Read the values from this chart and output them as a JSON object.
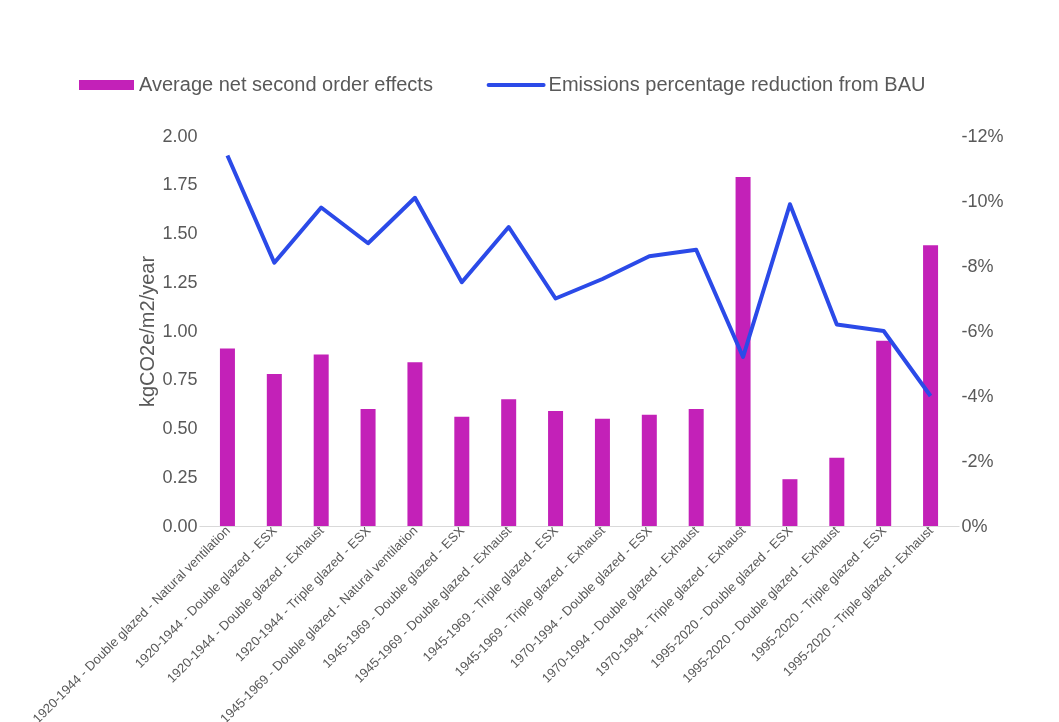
{
  "chart_data": {
    "type": "bar",
    "categories": [
      "1920-1944 - Double glazed - Natural ventilation",
      "1920-1944 - Double glazed - ESX",
      "1920-1944 - Double glazed - Exhaust",
      "1920-1944 - Triple glazed - ESX",
      "1945-1969 - Double glazed - Natural ventilation",
      "1945-1969 - Double glazed - ESX",
      "1945-1969 - Double glazed - Exhaust",
      "1945-1969 - Triple glazed - ESX",
      "1945-1969 - Triple glazed - Exhaust",
      "1970-1994 - Double glazed - ESX",
      "1970-1994 - Double glazed - Exhaust",
      "1970-1994 - Triple glazed - Exhaust",
      "1995-2020 - Double glazed - ESX",
      "1995-2020 - Double glazed - Exhaust",
      "1995-2020 - Triple glazed - ESX",
      "1995-2020 - Triple glazed - Exhaust"
    ],
    "series": [
      {
        "name": "Average net second order effects",
        "color": "#c321b8",
        "values": [
          0.91,
          0.78,
          0.88,
          0.6,
          0.84,
          0.56,
          0.65,
          0.59,
          0.55,
          0.57,
          0.6,
          1.79,
          0.24,
          0.35,
          0.95,
          1.44
        ]
      },
      {
        "name": "Emissions percentage reduction from BAU",
        "type": "line",
        "axis": "y2",
        "color": "#2b4ae8",
        "values": [
          -11.4,
          -8.1,
          -9.8,
          -8.7,
          -10.1,
          -7.5,
          -9.2,
          -7.0,
          -7.6,
          -8.3,
          -8.5,
          -5.2,
          -9.9,
          -6.2,
          -6.0,
          -4.0
        ]
      }
    ],
    "ylabel": "kgCO2e/m2/year",
    "ylim": [
      0,
      2
    ],
    "yticks": [
      {
        "value": 0,
        "label": "0.00"
      },
      {
        "value": 0.25,
        "label": "0.25"
      },
      {
        "value": 0.5,
        "label": "0.50"
      },
      {
        "value": 0.75,
        "label": "0.75"
      },
      {
        "value": 1,
        "label": "1.00"
      },
      {
        "value": 1.25,
        "label": "1.25"
      },
      {
        "value": 1.5,
        "label": "1.50"
      },
      {
        "value": 1.75,
        "label": "1.75"
      },
      {
        "value": 2,
        "label": "2.00"
      }
    ],
    "y2lim": [
      0,
      -12
    ],
    "y2ticks": [
      {
        "value": 0,
        "label": "0%"
      },
      {
        "value": -2,
        "label": "-2%"
      },
      {
        "value": -4,
        "label": "-4%"
      },
      {
        "value": -6,
        "label": "-6%"
      },
      {
        "value": -8,
        "label": "-8%"
      },
      {
        "value": -10,
        "label": "-10%"
      },
      {
        "value": -12,
        "label": "-12%"
      }
    ],
    "legend": "top",
    "grid": false,
    "line_style": "solid",
    "marker": "none"
  }
}
